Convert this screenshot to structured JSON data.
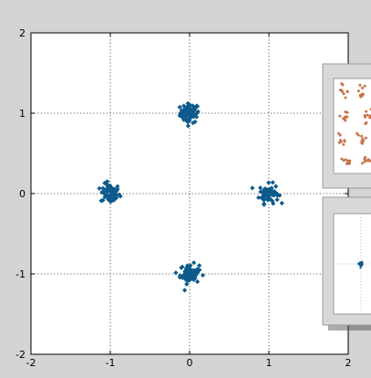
{
  "chart_data": {
    "type": "scatter",
    "title": "",
    "xlabel": "",
    "ylabel": "",
    "xlim": [
      -2,
      2
    ],
    "ylim": [
      -2,
      2
    ],
    "x_ticks": [
      "-2",
      "-1",
      "0",
      "1",
      "2"
    ],
    "y_ticks": [
      "-2",
      "-1",
      "0",
      "1",
      "2"
    ],
    "grid": true,
    "marker": "diamond",
    "point_color": "#0d5b8c",
    "clusters": [
      {
        "center": [
          0,
          1
        ],
        "spread": 0.06
      },
      {
        "center": [
          -1,
          0
        ],
        "spread": 0.06
      },
      {
        "center": [
          1,
          0
        ],
        "spread": 0.06
      },
      {
        "center": [
          0,
          -1
        ],
        "spread": 0.06
      }
    ],
    "points_per_cluster": 70
  },
  "inset_windows": [
    {
      "description": "constellation with orange points, partially hidden"
    },
    {
      "description": "single-cluster constellation, partially hidden"
    }
  ],
  "colors": {
    "background": "#d4d4d4",
    "axes_face": "#ffffff",
    "grid": "#333333",
    "inset_point": "#c8734a"
  }
}
